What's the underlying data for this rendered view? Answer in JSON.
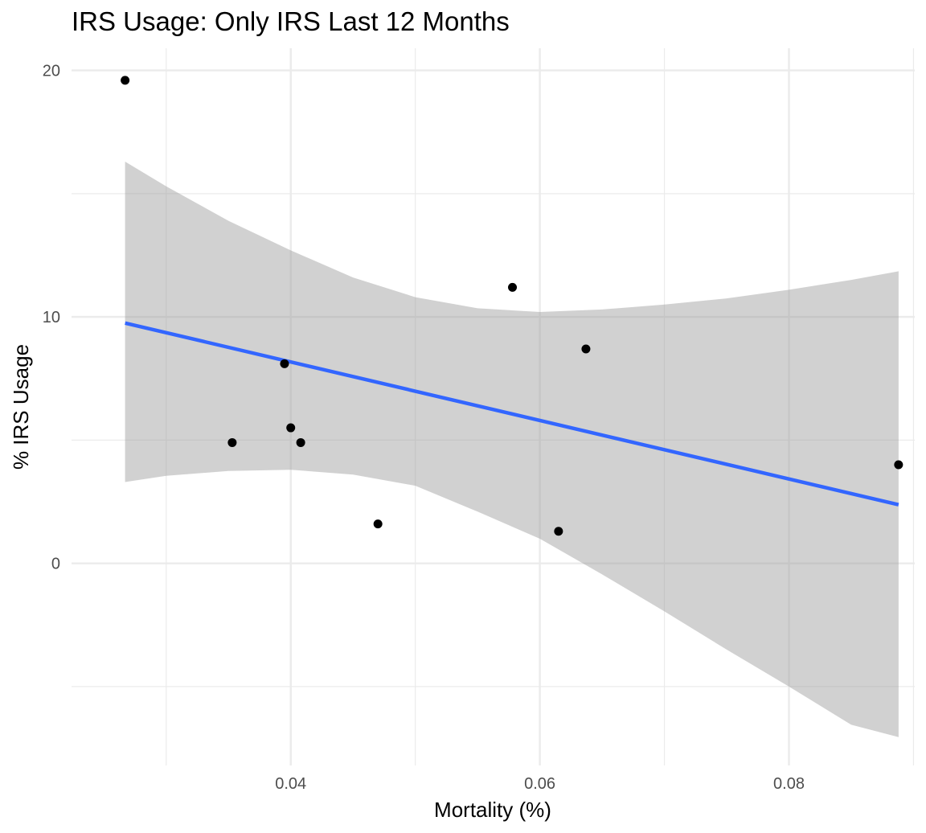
{
  "chart_data": {
    "type": "scatter",
    "title": "IRS Usage: Only IRS Last 12 Months",
    "xlabel": "Mortality (%)",
    "ylabel": "% IRS Usage",
    "xlim": [
      0.0224,
      0.0901
    ],
    "ylim": [
      -8.2,
      20.9
    ],
    "x_ticks": [
      0.04,
      0.06,
      0.08
    ],
    "x_tick_labels": [
      "0.04",
      "0.06",
      "0.08"
    ],
    "x_minor_ticks": [
      0.03,
      0.05,
      0.07,
      0.09
    ],
    "y_ticks": [
      0,
      10,
      20
    ],
    "y_tick_labels": [
      "0",
      "10",
      "20"
    ],
    "y_minor_ticks": [
      -5,
      5,
      15
    ],
    "grid": true,
    "legend": "none",
    "points": [
      {
        "x": 0.0267,
        "y": 19.6
      },
      {
        "x": 0.0353,
        "y": 4.9
      },
      {
        "x": 0.0395,
        "y": 8.1
      },
      {
        "x": 0.04,
        "y": 5.5
      },
      {
        "x": 0.0408,
        "y": 4.9
      },
      {
        "x": 0.047,
        "y": 1.6
      },
      {
        "x": 0.0578,
        "y": 11.2
      },
      {
        "x": 0.0615,
        "y": 1.3
      },
      {
        "x": 0.0637,
        "y": 8.7
      },
      {
        "x": 0.0888,
        "y": 4.0
      }
    ],
    "trend_line": {
      "x": [
        0.0267,
        0.0888
      ],
      "y": [
        9.75,
        2.38
      ]
    },
    "confidence_band": {
      "x": [
        0.0267,
        0.03,
        0.035,
        0.04,
        0.045,
        0.05,
        0.055,
        0.06,
        0.065,
        0.07,
        0.075,
        0.08,
        0.085,
        0.0888
      ],
      "upper": [
        16.3,
        15.3,
        13.9,
        12.7,
        11.6,
        10.8,
        10.35,
        10.2,
        10.3,
        10.5,
        10.75,
        11.1,
        11.5,
        11.85
      ],
      "lower": [
        3.3,
        3.55,
        3.75,
        3.8,
        3.6,
        3.15,
        2.1,
        1.0,
        -0.45,
        -1.95,
        -3.5,
        -5.0,
        -6.55,
        -7.05
      ]
    },
    "colors": {
      "point": "#000000",
      "line": "#3366ff",
      "band": "#999999",
      "grid": "#ebebeb"
    }
  }
}
